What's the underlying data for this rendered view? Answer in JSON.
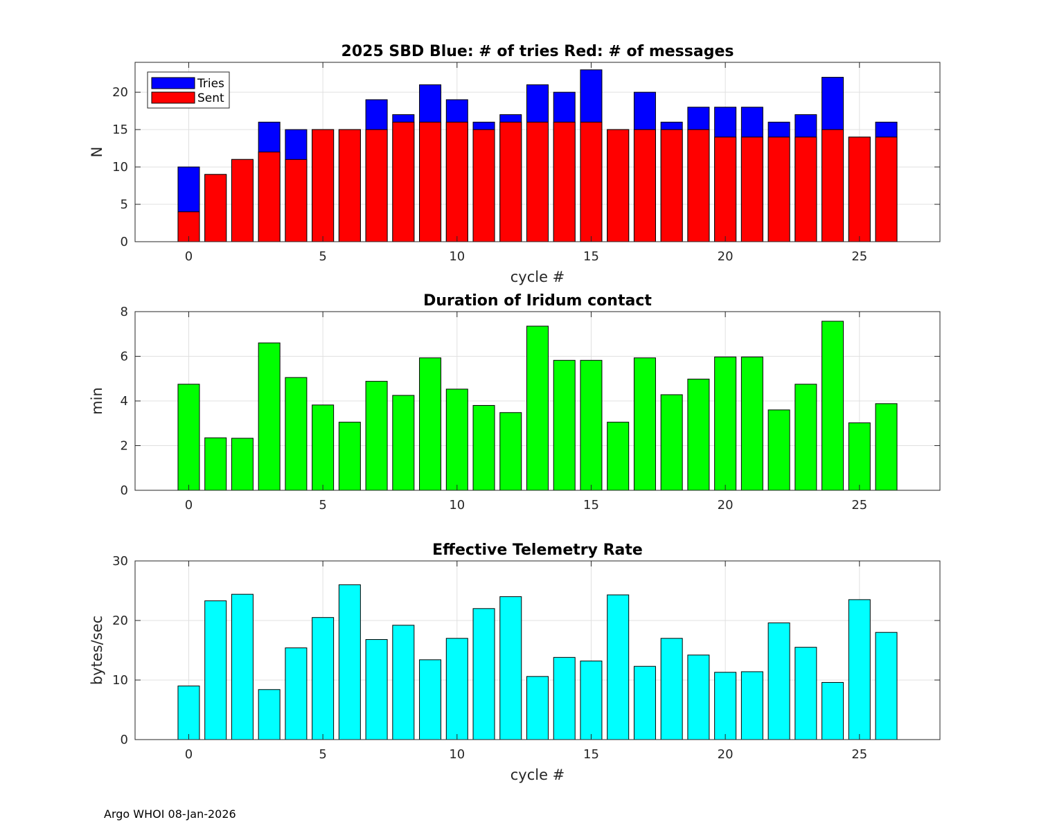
{
  "footer": "Argo WHOI 08-Jan-2026",
  "colors": {
    "tries": "#0000ff",
    "sent": "#ff0000",
    "duration": "#00ff00",
    "rate": "#00ffff",
    "grid": "#e0e0e0",
    "axis": "#262626"
  },
  "chart_data": [
    {
      "type": "bar",
      "title": "2025 SBD  Blue: # of tries   Red: # of messages",
      "xlabel": "cycle #",
      "ylabel": "N",
      "xlim": [
        -2,
        28
      ],
      "ylim": [
        0,
        24
      ],
      "xticks": [
        0,
        5,
        10,
        15,
        20,
        25
      ],
      "yticks": [
        0,
        5,
        10,
        15,
        20
      ],
      "legend": {
        "position": "top-left",
        "entries": [
          "Tries",
          "Sent"
        ]
      },
      "x": [
        0,
        1,
        2,
        3,
        4,
        5,
        6,
        7,
        8,
        9,
        10,
        11,
        12,
        13,
        14,
        15,
        16,
        17,
        18,
        19,
        20,
        21,
        22,
        23,
        24,
        25,
        26
      ],
      "series": [
        {
          "name": "Tries",
          "color_key": "tries",
          "values": [
            10,
            9,
            11,
            16,
            15,
            15,
            15,
            19,
            17,
            21,
            19,
            16,
            17,
            21,
            20,
            23,
            15,
            20,
            16,
            18,
            18,
            18,
            16,
            17,
            22,
            14,
            16
          ]
        },
        {
          "name": "Sent",
          "color_key": "sent",
          "values": [
            4,
            9,
            11,
            12,
            11,
            15,
            15,
            15,
            16,
            16,
            16,
            15,
            16,
            16,
            16,
            16,
            15,
            15,
            15,
            15,
            14,
            14,
            14,
            14,
            15,
            14,
            14
          ]
        }
      ]
    },
    {
      "type": "bar",
      "title": "Duration of Iridum contact",
      "xlabel": "",
      "ylabel": "min",
      "xlim": [
        -2,
        28
      ],
      "ylim": [
        0,
        8
      ],
      "xticks": [
        0,
        5,
        10,
        15,
        20,
        25
      ],
      "yticks": [
        0,
        2,
        4,
        6,
        8
      ],
      "x": [
        -1,
        0,
        1,
        2,
        3,
        4,
        5,
        6,
        7,
        8,
        9,
        10,
        11,
        12,
        13,
        14,
        15,
        16,
        17,
        18,
        19,
        20,
        21,
        22,
        23,
        24,
        25,
        26
      ],
      "series": [
        {
          "name": "Duration",
          "color_key": "duration",
          "values": [
            0,
            4.75,
            2.35,
            2.33,
            6.6,
            5.05,
            3.82,
            3.05,
            4.88,
            4.25,
            5.93,
            4.53,
            3.8,
            3.48,
            7.35,
            5.82,
            5.82,
            3.05,
            5.93,
            4.28,
            4.98,
            5.97,
            5.97,
            3.6,
            4.75,
            7.57,
            3.02,
            3.88
          ]
        }
      ]
    },
    {
      "type": "bar",
      "title": "Effective Telemetry Rate",
      "xlabel": "cycle #",
      "ylabel": "bytes/sec",
      "xlim": [
        -2,
        28
      ],
      "ylim": [
        0,
        30
      ],
      "xticks": [
        0,
        5,
        10,
        15,
        20,
        25
      ],
      "yticks": [
        0,
        10,
        20,
        30
      ],
      "x": [
        0,
        1,
        2,
        3,
        4,
        5,
        6,
        7,
        8,
        9,
        10,
        11,
        12,
        13,
        14,
        15,
        16,
        17,
        18,
        19,
        20,
        21,
        22,
        23,
        24,
        25,
        26
      ],
      "series": [
        {
          "name": "Rate",
          "color_key": "rate",
          "values": [
            9,
            23.3,
            24.4,
            8.4,
            15.4,
            20.5,
            26,
            16.8,
            19.2,
            13.4,
            17,
            22,
            24,
            10.6,
            13.8,
            13.2,
            24.3,
            12.3,
            17,
            14.2,
            11.3,
            11.4,
            19.6,
            15.5,
            9.6,
            23.5,
            18
          ]
        }
      ]
    }
  ]
}
